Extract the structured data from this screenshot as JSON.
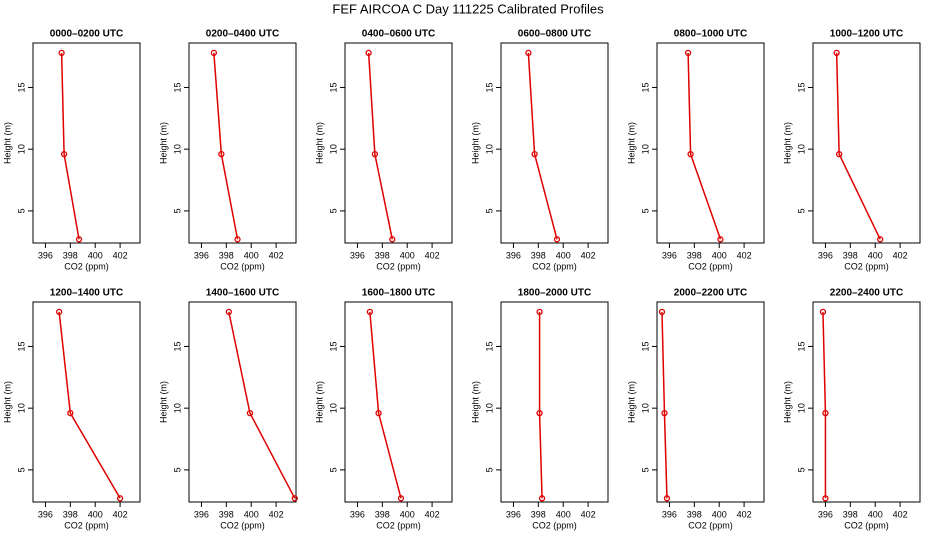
{
  "title": "FEF AIRCOA C  Day 111225  Calibrated Profiles",
  "chart_data": [
    {
      "type": "line",
      "title": "0000–0200 UTC",
      "xlabel": "CO2 (ppm)",
      "ylabel": "Height (m)",
      "color": "#e00000",
      "x": [
        397.3,
        397.5,
        398.7
      ],
      "values": [
        17.8,
        9.6,
        2.7
      ],
      "xlim": [
        395,
        403.6
      ],
      "ylim": [
        2.4,
        18.6
      ],
      "xticks": [
        396,
        398,
        400,
        402
      ],
      "yticks": [
        5,
        10,
        15
      ]
    },
    {
      "type": "line",
      "title": "0200–0400 UTC",
      "xlabel": "CO2 (ppm)",
      "ylabel": "Height (m)",
      "color": "#e00000",
      "x": [
        397.0,
        397.6,
        398.9
      ],
      "values": [
        17.8,
        9.6,
        2.7
      ],
      "xlim": [
        395,
        403.6
      ],
      "ylim": [
        2.4,
        18.6
      ],
      "xticks": [
        396,
        398,
        400,
        402
      ],
      "yticks": [
        5,
        10,
        15
      ]
    },
    {
      "type": "line",
      "title": "0400–0600 UTC",
      "xlabel": "CO2 (ppm)",
      "ylabel": "Height (m)",
      "color": "#e00000",
      "x": [
        396.9,
        397.4,
        398.8
      ],
      "values": [
        17.8,
        9.6,
        2.7
      ],
      "xlim": [
        395,
        403.6
      ],
      "ylim": [
        2.4,
        18.6
      ],
      "xticks": [
        396,
        398,
        400,
        402
      ],
      "yticks": [
        5,
        10,
        15
      ]
    },
    {
      "type": "line",
      "title": "0600–0800 UTC",
      "xlabel": "CO2 (ppm)",
      "ylabel": "Height (m)",
      "color": "#e00000",
      "x": [
        397.2,
        397.7,
        399.5
      ],
      "values": [
        17.8,
        9.6,
        2.7
      ],
      "xlim": [
        395,
        403.6
      ],
      "ylim": [
        2.4,
        18.6
      ],
      "xticks": [
        396,
        398,
        400,
        402
      ],
      "yticks": [
        5,
        10,
        15
      ]
    },
    {
      "type": "line",
      "title": "0800–1000 UTC",
      "xlabel": "CO2 (ppm)",
      "ylabel": "Height (m)",
      "color": "#e00000",
      "x": [
        397.5,
        397.7,
        400.1
      ],
      "values": [
        17.8,
        9.6,
        2.7
      ],
      "xlim": [
        395,
        403.6
      ],
      "ylim": [
        2.4,
        18.6
      ],
      "xticks": [
        396,
        398,
        400,
        402
      ],
      "yticks": [
        5,
        10,
        15
      ]
    },
    {
      "type": "line",
      "title": "1000–1200 UTC",
      "xlabel": "CO2 (ppm)",
      "ylabel": "Height (m)",
      "color": "#e00000",
      "x": [
        396.9,
        397.1,
        400.4
      ],
      "values": [
        17.8,
        9.6,
        2.7
      ],
      "xlim": [
        395,
        403.6
      ],
      "ylim": [
        2.4,
        18.6
      ],
      "xticks": [
        396,
        398,
        400,
        402
      ],
      "yticks": [
        5,
        10,
        15
      ]
    },
    {
      "type": "line",
      "title": "1200–1400 UTC",
      "xlabel": "CO2 (ppm)",
      "ylabel": "Height (m)",
      "color": "#e00000",
      "x": [
        397.1,
        398.0,
        402.0
      ],
      "values": [
        17.8,
        9.6,
        2.7
      ],
      "xlim": [
        395,
        403.6
      ],
      "ylim": [
        2.4,
        18.6
      ],
      "xticks": [
        396,
        398,
        400,
        402
      ],
      "yticks": [
        5,
        10,
        15
      ]
    },
    {
      "type": "line",
      "title": "1400–1600 UTC",
      "xlabel": "CO2 (ppm)",
      "ylabel": "Height (m)",
      "color": "#e00000",
      "x": [
        398.2,
        399.9,
        403.5
      ],
      "values": [
        17.8,
        9.6,
        2.7
      ],
      "xlim": [
        395,
        403.6
      ],
      "ylim": [
        2.4,
        18.6
      ],
      "xticks": [
        396,
        398,
        400,
        402
      ],
      "yticks": [
        5,
        10,
        15
      ]
    },
    {
      "type": "line",
      "title": "1600–1800 UTC",
      "xlabel": "CO2 (ppm)",
      "ylabel": "Height (m)",
      "color": "#e00000",
      "x": [
        397.0,
        397.7,
        399.5
      ],
      "values": [
        17.8,
        9.6,
        2.7
      ],
      "xlim": [
        395,
        403.6
      ],
      "ylim": [
        2.4,
        18.6
      ],
      "xticks": [
        396,
        398,
        400,
        402
      ],
      "yticks": [
        5,
        10,
        15
      ]
    },
    {
      "type": "line",
      "title": "1800–2000 UTC",
      "xlabel": "CO2 (ppm)",
      "ylabel": "Height (m)",
      "color": "#e00000",
      "x": [
        398.1,
        398.1,
        398.3
      ],
      "values": [
        17.8,
        9.6,
        2.7
      ],
      "xlim": [
        395,
        403.6
      ],
      "ylim": [
        2.4,
        18.6
      ],
      "xticks": [
        396,
        398,
        400,
        402
      ],
      "yticks": [
        5,
        10,
        15
      ]
    },
    {
      "type": "line",
      "title": "2000–2200 UTC",
      "xlabel": "CO2 (ppm)",
      "ylabel": "Height (m)",
      "color": "#e00000",
      "x": [
        395.4,
        395.6,
        395.8
      ],
      "values": [
        17.8,
        9.6,
        2.7
      ],
      "xlim": [
        395,
        403.6
      ],
      "ylim": [
        2.4,
        18.6
      ],
      "xticks": [
        396,
        398,
        400,
        402
      ],
      "yticks": [
        5,
        10,
        15
      ]
    },
    {
      "type": "line",
      "title": "2200–2400 UTC",
      "xlabel": "CO2 (ppm)",
      "ylabel": "Height (m)",
      "color": "#e00000",
      "x": [
        395.8,
        396.0,
        396.0
      ],
      "values": [
        17.8,
        9.6,
        2.7
      ],
      "xlim": [
        395,
        403.6
      ],
      "ylim": [
        2.4,
        18.6
      ],
      "xticks": [
        396,
        398,
        400,
        402
      ],
      "yticks": [
        5,
        10,
        15
      ]
    }
  ]
}
